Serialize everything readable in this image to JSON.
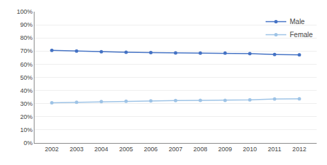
{
  "chart_data": {
    "type": "line",
    "x": [
      2002,
      2003,
      2004,
      2005,
      2006,
      2007,
      2008,
      2009,
      2010,
      2011,
      2012
    ],
    "series": [
      {
        "name": "Male",
        "color": "#4472C4",
        "values": [
          0.706,
          0.7,
          0.695,
          0.691,
          0.688,
          0.686,
          0.685,
          0.684,
          0.68,
          0.674,
          0.672
        ]
      },
      {
        "name": "Female",
        "color": "#9DC3E6",
        "values": [
          0.306,
          0.31,
          0.315,
          0.318,
          0.321,
          0.323,
          0.324,
          0.325,
          0.328,
          0.335,
          0.337
        ]
      }
    ],
    "xlim": [
      2001.3,
      2012.7
    ],
    "xticks": [
      2002,
      2003,
      2004,
      2005,
      2006,
      2007,
      2008,
      2009,
      2010,
      2011,
      2012
    ],
    "ylim": [
      0.0,
      1.0
    ],
    "yticks": [
      {
        "value": 0.0,
        "label": "0%"
      },
      {
        "value": 0.1,
        "label": "10%"
      },
      {
        "value": 0.2,
        "label": "20%"
      },
      {
        "value": 0.3,
        "label": "30%"
      },
      {
        "value": 0.4,
        "label": "40%"
      },
      {
        "value": 0.5,
        "label": "50%"
      },
      {
        "value": 0.6,
        "label": "60%"
      },
      {
        "value": 0.7,
        "label": "70%"
      },
      {
        "value": 0.8,
        "label": "80%"
      },
      {
        "value": 0.9,
        "label": "90%"
      },
      {
        "value": 1.0,
        "label": "100%"
      }
    ],
    "grid": "y",
    "legend": "upper right",
    "marker": "circle",
    "line_style": "solid"
  }
}
